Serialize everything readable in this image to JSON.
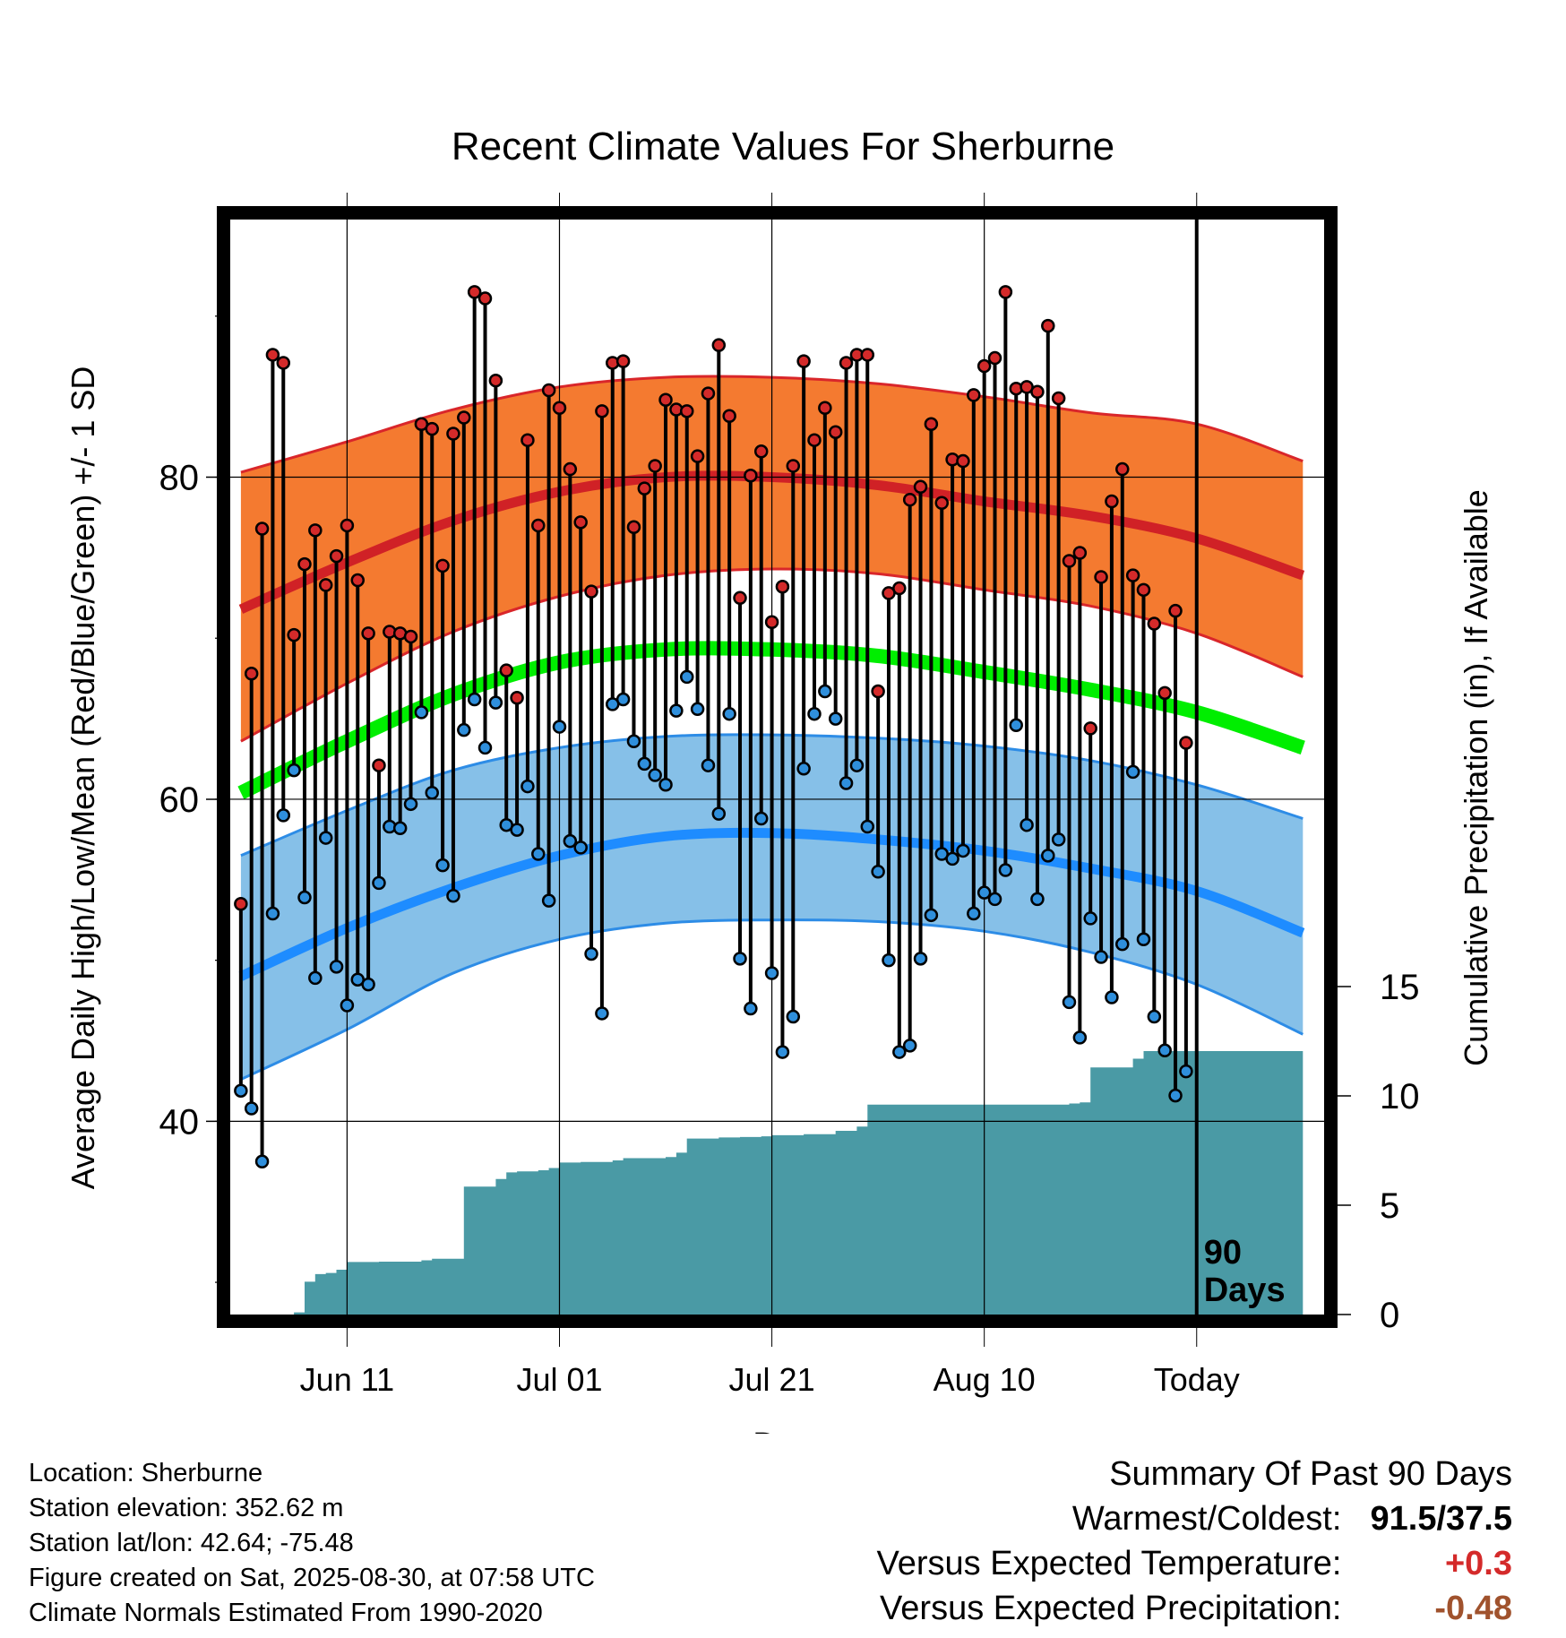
{
  "chart_data": {
    "type": "line",
    "title": "Recent Climate Values For Sherburne",
    "xlabel": "Day",
    "ylabel": "Average Daily High/Low/Mean (Red/Blue/Green) +/- 1 SD",
    "y2label": "Cumulative Precipitation (in), If Available",
    "ylim": [
      28,
      96
    ],
    "y_ticks": [
      40,
      60,
      80
    ],
    "y2_ticks": [
      0,
      5,
      10,
      15
    ],
    "xlim": [
      "2025-05-31",
      "2025-09-11"
    ],
    "x_ticks": [
      {
        "date": "2025-06-11",
        "label": "Jun 11"
      },
      {
        "date": "2025-07-01",
        "label": "Jul 01"
      },
      {
        "date": "2025-07-21",
        "label": "Jul 21"
      },
      {
        "date": "2025-08-10",
        "label": "Aug 10"
      },
      {
        "date": "2025-08-30",
        "label": "Today"
      }
    ],
    "today_marker": {
      "date": "2025-08-30",
      "label_line1": "90",
      "label_line2": "Days"
    },
    "grid": true,
    "colors": {
      "high_band": "#f47a30",
      "high_line": "#d02126",
      "high_edge": "#d9262a",
      "low_band": "#86c0e8",
      "low_line": "#1e8cff",
      "low_edge": "#2d8ce6",
      "mean_line": "#00ee00",
      "precip": "#4a9aa5",
      "high_dot": "#d42a2a",
      "low_dot": "#2f8fdc"
    },
    "normals": {
      "dates": [
        "2025-06-01",
        "2025-06-11",
        "2025-06-21",
        "2025-07-01",
        "2025-07-11",
        "2025-07-21",
        "2025-07-31",
        "2025-08-10",
        "2025-08-20",
        "2025-08-30",
        "2025-09-09"
      ],
      "high_mean": [
        71.8,
        74.7,
        77.3,
        79.1,
        80.0,
        80.0,
        79.5,
        78.5,
        77.6,
        76.2,
        73.9
      ],
      "high_upper": [
        80.3,
        82.2,
        84.2,
        85.6,
        86.2,
        86.2,
        85.8,
        85.0,
        84.0,
        83.3,
        81.0
      ],
      "high_lower": [
        63.6,
        67.2,
        70.4,
        72.6,
        73.9,
        74.3,
        74.0,
        73.0,
        72.0,
        70.3,
        67.6
      ],
      "mean": [
        60.4,
        63.6,
        66.5,
        68.5,
        69.3,
        69.3,
        68.9,
        67.9,
        66.8,
        65.4,
        63.2
      ],
      "low_mean": [
        49.0,
        52.0,
        54.5,
        56.5,
        57.7,
        57.9,
        57.5,
        56.8,
        55.7,
        54.3,
        51.7
      ],
      "low_upper": [
        56.5,
        59.3,
        61.8,
        63.2,
        63.9,
        64.0,
        63.8,
        63.3,
        62.4,
        60.9,
        58.8
      ],
      "low_lower": [
        42.6,
        45.7,
        49.2,
        51.3,
        52.3,
        52.5,
        52.4,
        51.8,
        50.5,
        48.5,
        45.4
      ]
    },
    "series": [
      {
        "name": "High",
        "values": [
          53.5,
          67.8,
          76.8,
          87.6,
          87.1,
          70.2,
          74.6,
          76.7,
          73.3,
          75.1,
          77.0,
          73.6,
          70.3,
          62.1,
          70.4,
          70.3,
          70.1,
          83.3,
          83.0,
          74.5,
          82.7,
          83.7,
          91.5,
          91.1,
          86.0,
          68.0,
          66.3,
          82.3,
          77.0,
          85.4,
          84.3,
          80.5,
          77.2,
          72.9,
          84.1,
          87.1,
          87.2,
          76.9,
          79.3,
          80.7,
          84.8,
          84.2,
          84.1,
          81.3,
          85.2,
          88.2,
          83.8,
          72.5,
          80.1,
          81.6,
          71.0,
          73.2,
          80.7,
          87.2,
          82.3,
          84.3,
          82.8,
          87.1,
          87.6,
          87.6,
          66.7,
          72.8,
          73.1,
          78.6,
          79.4,
          83.3,
          78.4,
          81.1,
          81.0,
          85.1,
          86.9,
          87.4,
          91.5,
          85.5,
          85.6,
          85.3,
          89.4,
          84.9,
          74.8,
          75.3,
          64.4,
          73.8,
          78.5,
          80.5,
          73.9,
          73.0,
          70.9,
          66.6,
          71.7,
          63.5
        ]
      },
      {
        "name": "Low",
        "values": [
          41.9,
          40.8,
          37.5,
          52.9,
          59.0,
          61.8,
          53.9,
          48.9,
          57.6,
          49.6,
          47.2,
          48.8,
          48.5,
          54.8,
          58.3,
          58.2,
          59.7,
          65.4,
          60.4,
          55.9,
          54.0,
          64.3,
          66.2,
          63.2,
          66.0,
          58.4,
          58.1,
          60.8,
          56.6,
          53.7,
          64.5,
          57.4,
          57.0,
          50.4,
          46.7,
          65.9,
          66.2,
          63.6,
          62.2,
          61.5,
          60.9,
          65.5,
          67.6,
          65.6,
          62.1,
          59.1,
          65.3,
          50.1,
          47.0,
          58.8,
          49.2,
          44.3,
          46.5,
          61.9,
          65.3,
          66.7,
          65.0,
          61.0,
          62.1,
          58.3,
          55.5,
          50.0,
          44.3,
          44.7,
          50.1,
          52.8,
          56.6,
          56.3,
          56.8,
          52.9,
          54.2,
          53.8,
          55.6,
          64.6,
          58.4,
          53.8,
          56.5,
          57.5,
          47.4,
          45.2,
          52.6,
          50.2,
          47.7,
          51.0,
          61.7,
          51.3,
          46.5,
          44.4,
          41.6,
          43.1
        ]
      },
      {
        "name": "Cumulative Precipitation",
        "values": [
          0,
          0,
          0,
          0,
          0,
          0.1,
          1.5,
          1.85,
          1.9,
          2.05,
          2.4,
          2.4,
          2.4,
          2.42,
          2.42,
          2.42,
          2.42,
          2.48,
          2.55,
          2.55,
          2.55,
          5.85,
          5.85,
          5.85,
          6.2,
          6.5,
          6.55,
          6.55,
          6.6,
          6.7,
          6.95,
          6.95,
          6.98,
          6.98,
          6.98,
          7.05,
          7.15,
          7.15,
          7.15,
          7.15,
          7.2,
          7.4,
          8.05,
          8.05,
          8.05,
          8.1,
          8.1,
          8.12,
          8.12,
          8.15,
          8.2,
          8.2,
          8.2,
          8.25,
          8.25,
          8.25,
          8.4,
          8.4,
          8.6,
          9.6,
          9.6,
          9.6,
          9.6,
          9.6,
          9.6,
          9.6,
          9.6,
          9.6,
          9.6,
          9.6,
          9.6,
          9.6,
          9.6,
          9.6,
          9.6,
          9.6,
          9.6,
          9.6,
          9.65,
          9.7,
          11.3,
          11.3,
          11.3,
          11.3,
          11.7,
          12.05,
          12.05,
          12.05,
          12.05,
          12.05,
          12.05,
          12.05,
          12.05
        ]
      }
    ],
    "series_start": "2025-06-01",
    "precip_start": "2025-06-01",
    "precip_end": "2025-09-09"
  },
  "footer": {
    "location": "Location: Sherburne",
    "elevation": "Station elevation: 352.62 m",
    "latlon": "Station lat/lon: 42.64; -75.48",
    "created": "Figure created on Sat, 2025-08-30, at 07:58 UTC",
    "normals": "Climate Normals Estimated From 1990-2020"
  },
  "summary": {
    "title": "Summary Of Past 90 Days",
    "warm_cold_label": "Warmest/Coldest:",
    "warm_cold_value": "91.5/37.5",
    "temp_label": "Versus Expected Temperature:",
    "temp_value": "+0.3",
    "temp_color": "#d42a2a",
    "precip_label": "Versus Expected Precipitation:",
    "precip_value": "-0.48",
    "precip_color": "#a0522d"
  }
}
